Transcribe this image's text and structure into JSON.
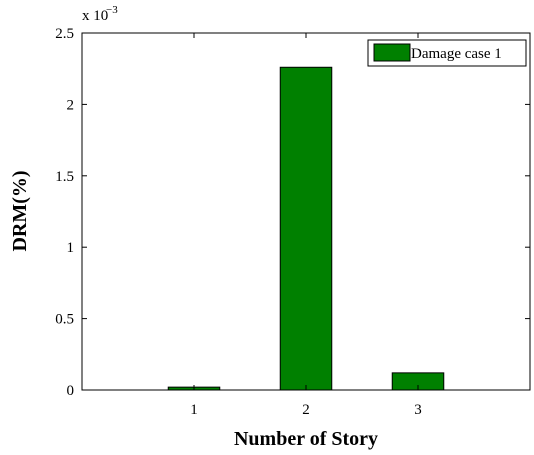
{
  "chart_data": {
    "type": "bar",
    "categories": [
      "1",
      "2",
      "3"
    ],
    "series": [
      {
        "name": "Damage case 1",
        "values": [
          2e-05,
          0.00226,
          0.00012
        ],
        "color": "#008000"
      }
    ],
    "xlabel": "Number of Story",
    "ylabel": "DRM(%)",
    "xlim": [
      0,
      4
    ],
    "ylim": [
      0,
      0.0025
    ],
    "y_ticks": [
      0,
      0.0005,
      0.001,
      0.0015,
      0.002,
      0.0025
    ],
    "y_tick_labels": [
      "0",
      "0.5",
      "1",
      "1.5",
      "2",
      "2.5"
    ],
    "y_exponent_base": "x 10",
    "y_exponent_power": "−3",
    "legend_position": "top-right",
    "grid": false
  }
}
